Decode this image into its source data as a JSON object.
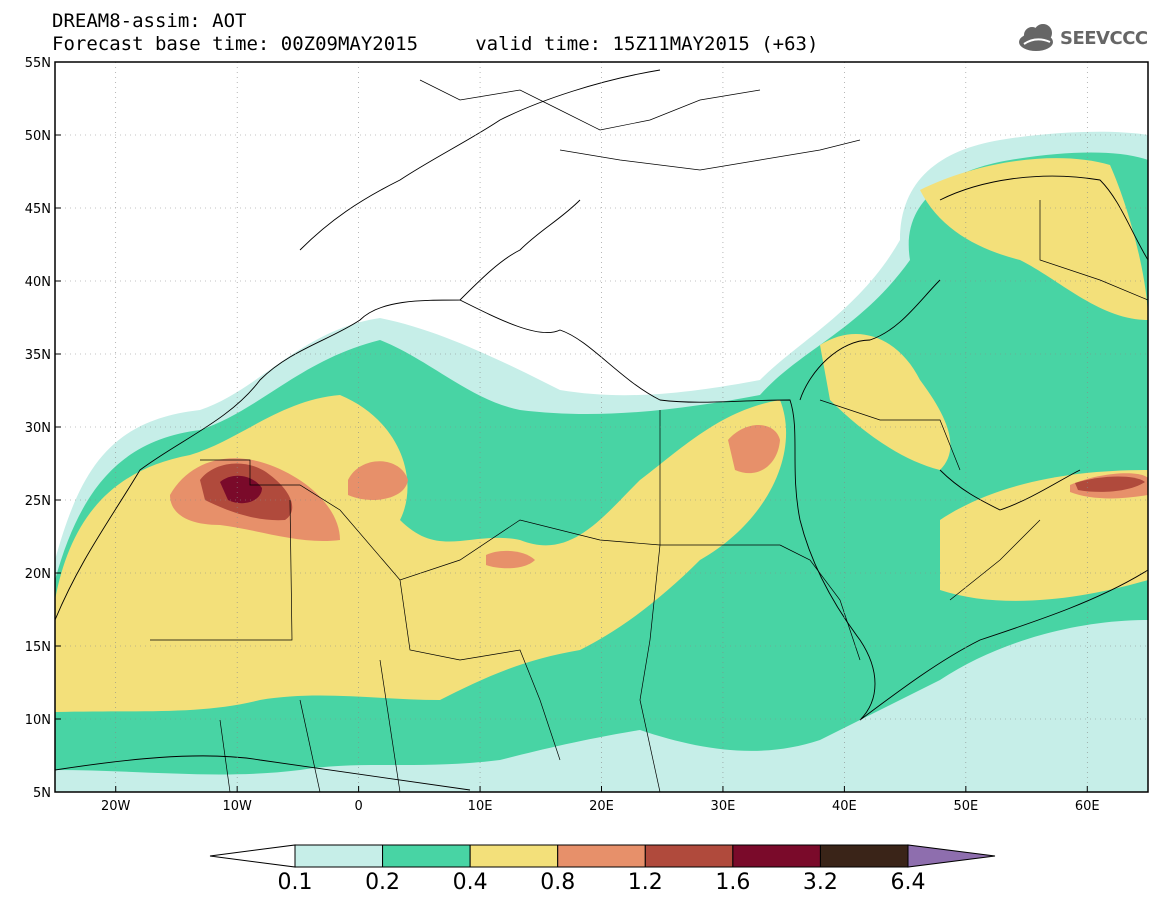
{
  "header": {
    "line1": "DREAM8-assim: AOT",
    "line2": "Forecast base time: 00Z09MAY2015     valid time: 15Z11MAY2015 (+63)"
  },
  "logo": {
    "text": "SEEVCCC",
    "icon": "cloud-logo-icon"
  },
  "map": {
    "lon_range": [
      -25,
      65
    ],
    "lat_range": [
      5,
      55
    ],
    "lat_ticks": [
      "55N",
      "50N",
      "45N",
      "40N",
      "35N",
      "30N",
      "25N",
      "20N",
      "15N",
      "10N",
      "5N"
    ],
    "lon_ticks": [
      "20W",
      "10W",
      "0",
      "10E",
      "20E",
      "30E",
      "40E",
      "50E",
      "60E"
    ],
    "grid": true
  },
  "colorbar": {
    "labels": [
      "0.1",
      "0.2",
      "0.4",
      "0.8",
      "1.2",
      "1.6",
      "3.2",
      "6.4"
    ],
    "colors": [
      "#c6eee8",
      "#48d4a4",
      "#f3e07a",
      "#e7906a",
      "#b04a3c",
      "#7a0a2a",
      "#3a2418",
      "#8e6eae"
    ]
  }
}
